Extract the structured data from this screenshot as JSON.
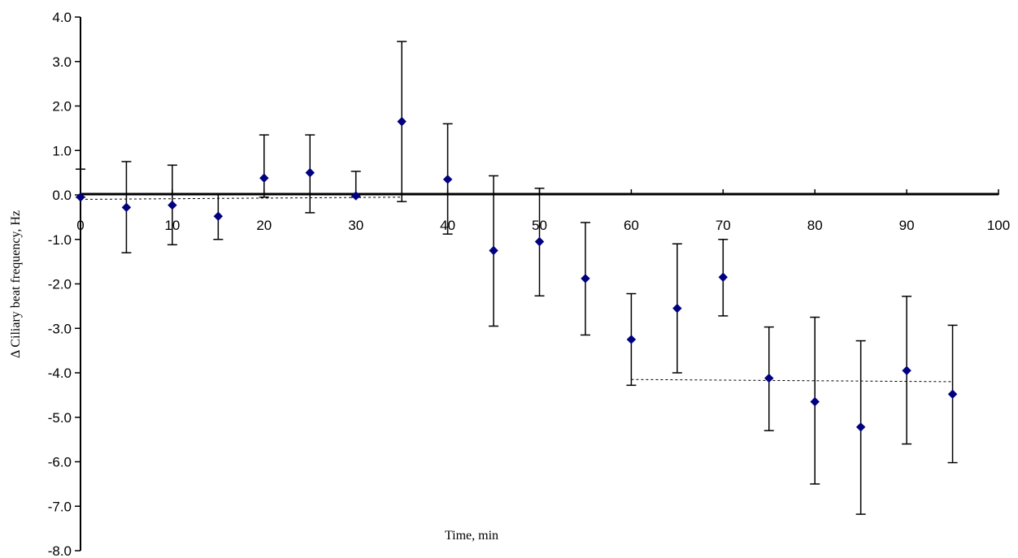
{
  "chart_data": {
    "type": "scatter",
    "title": "",
    "xlabel": "Time, min",
    "ylabel": "Δ Ciliary beat frequency, Hz",
    "xlim": [
      0,
      100
    ],
    "ylim": [
      -8,
      4
    ],
    "x_ticks": [
      0,
      10,
      20,
      30,
      40,
      50,
      60,
      70,
      80,
      90,
      100
    ],
    "x_tick_labels": [
      "0",
      "10",
      "20",
      "30",
      "40",
      "50",
      "60",
      "70",
      "80",
      "90",
      "100"
    ],
    "y_ticks": [
      4,
      3,
      2,
      1,
      0,
      -1,
      -2,
      -3,
      -4,
      -5,
      -6,
      -7,
      -8
    ],
    "y_tick_labels": [
      "4.0",
      "3.0",
      "2.0",
      "1.0",
      "0.0",
      "-1.0",
      "-2.0",
      "-3.0",
      "-4.0",
      "-5.0",
      "-6.0",
      "-7.0",
      "-8.0"
    ],
    "grid": false,
    "marker_color": "#000080",
    "series": [
      {
        "x": [
          0,
          5,
          10,
          15,
          20,
          25,
          30,
          35,
          40,
          45,
          50,
          55,
          60,
          65,
          70,
          75,
          80,
          85,
          90,
          95
        ],
        "y": [
          -0.05,
          -0.28,
          -0.23,
          -0.48,
          0.38,
          0.5,
          -0.02,
          1.65,
          0.35,
          -1.25,
          -1.05,
          -1.88,
          -3.25,
          -2.55,
          -1.85,
          -4.12,
          -4.65,
          -5.22,
          -3.95,
          -4.48
        ],
        "err_low": [
          -0.05,
          -1.3,
          -1.12,
          -1.0,
          -0.05,
          -0.4,
          -0.05,
          -0.15,
          -0.88,
          -2.95,
          -2.27,
          -3.15,
          -4.28,
          -4.0,
          -2.72,
          -5.3,
          -6.5,
          -7.18,
          -5.6,
          -6.02
        ],
        "err_high": [
          0.58,
          0.75,
          0.67,
          0.03,
          1.35,
          1.35,
          0.53,
          3.45,
          1.6,
          0.43,
          0.15,
          -0.62,
          -2.22,
          -1.1,
          -1.0,
          -2.97,
          -2.75,
          -3.28,
          -2.28,
          -2.93
        ]
      }
    ],
    "reference_lines": [
      {
        "x": [
          0,
          35
        ],
        "y": [
          -0.1,
          -0.05
        ],
        "style": "dashed"
      },
      {
        "x": [
          60,
          95
        ],
        "y": [
          -4.15,
          -4.2
        ],
        "style": "dashed"
      }
    ]
  }
}
